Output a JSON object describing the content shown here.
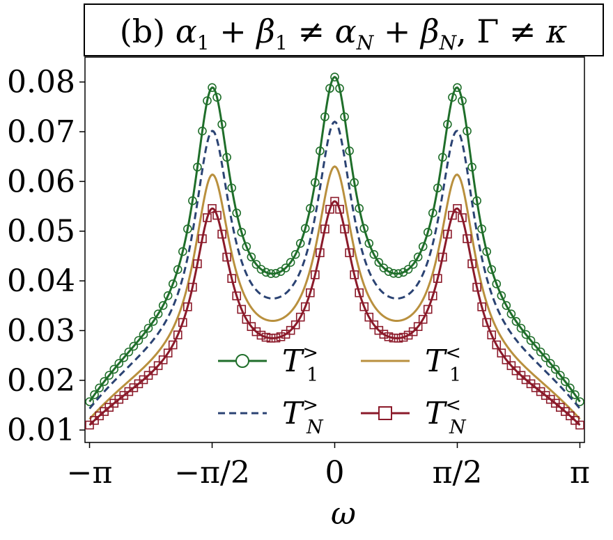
{
  "chart_data": {
    "type": "line",
    "title": "(b) α₁ + β₁ ≠ α_N + β_N, Γ ≠ κ",
    "xlabel": "ω",
    "ylabel": "",
    "xlim": [
      -3.2,
      3.2
    ],
    "ylim": [
      0.0075,
      0.085
    ],
    "x_ticks": [
      -3.14159,
      -1.5708,
      0,
      1.5708,
      3.14159
    ],
    "x_tick_labels": [
      "−π",
      "−π/2",
      "0",
      "π/2",
      "π"
    ],
    "y_ticks": [
      0.01,
      0.02,
      0.03,
      0.04,
      0.05,
      0.06,
      0.07,
      0.08
    ],
    "y_tick_labels": [
      "0.01",
      "0.02",
      "0.03",
      "0.04",
      "0.05",
      "0.06",
      "0.07",
      "0.08"
    ],
    "grid": false,
    "legend_position": "lower-center",
    "series": [
      {
        "name": "T1>",
        "label_main": "T",
        "label_sub": "1",
        "label_sup": ">",
        "color": "#1f6e2a",
        "style": "solid",
        "marker": "circle",
        "peak_positions": [
          -1.57,
          0,
          1.57
        ],
        "peak_value": 0.081,
        "valley_value": 0.0415,
        "edge_value": 0.0157
      },
      {
        "name": "TN>",
        "label_main": "T",
        "label_sub": "N",
        "label_sup": ">",
        "color": "#2b4373",
        "style": "dashed",
        "marker": "none",
        "peak_positions": [
          -1.57,
          0,
          1.57
        ],
        "peak_value": 0.072,
        "valley_value": 0.0365,
        "edge_value": 0.0143
      },
      {
        "name": "T1<",
        "label_main": "T",
        "label_sub": "1",
        "label_sup": "<",
        "color": "#b9903e",
        "style": "solid",
        "marker": "none",
        "peak_positions": [
          -1.57,
          0,
          1.57
        ],
        "peak_value": 0.063,
        "valley_value": 0.032,
        "edge_value": 0.0122
      },
      {
        "name": "TN<",
        "label_main": "T",
        "label_sub": "N",
        "label_sup": "<",
        "color": "#8b1a2a",
        "style": "solid",
        "marker": "square",
        "peak_positions": [
          -1.57,
          0,
          1.57
        ],
        "peak_value": 0.056,
        "valley_value": 0.0285,
        "edge_value": 0.011
      }
    ]
  },
  "title_parts": {
    "prefix": "(b) ",
    "a": "α",
    "a_sub": "1",
    "plus1": " + ",
    "b": "β",
    "b_sub": "1",
    "neq1": " ≠ ",
    "a2": "α",
    "a2_sub": "N",
    "plus2": " + ",
    "b2": "β",
    "b2_sub": "N",
    "comma": ", ",
    "gamma": "Γ",
    "neq2": " ≠ ",
    "kappa": "κ"
  }
}
